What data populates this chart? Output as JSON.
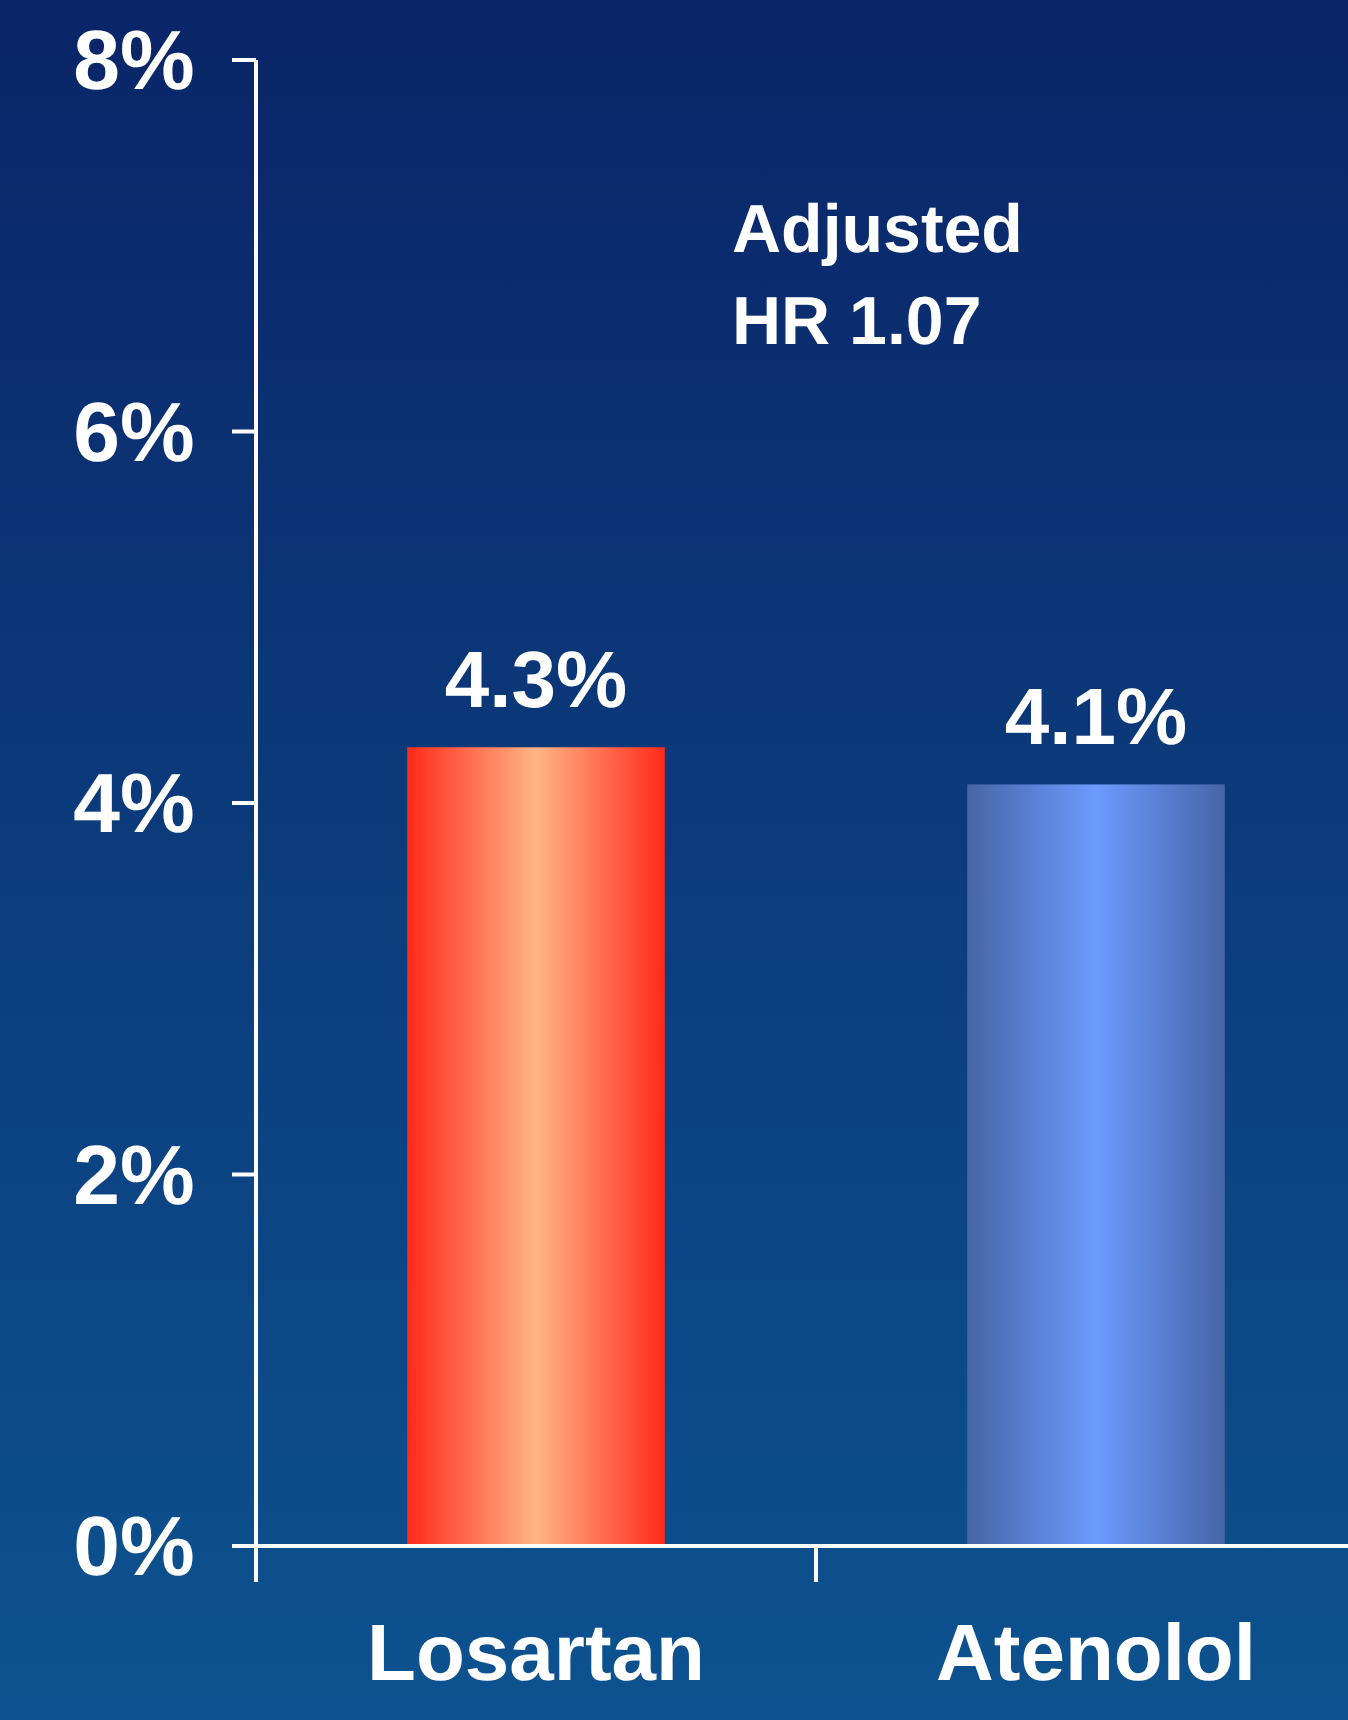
{
  "chart_data": {
    "type": "bar",
    "categories": [
      "Losartan",
      "Atenolol"
    ],
    "values": [
      4.3,
      4.1
    ],
    "colors": [
      "#ffb585",
      "#6b9bff"
    ],
    "value_labels": [
      "4.3%",
      "4.1%"
    ],
    "ylim": [
      0,
      8
    ],
    "yticks": [
      {
        "value": 0,
        "label": "0%"
      },
      {
        "value": 2,
        "label": "2%"
      },
      {
        "value": 4,
        "label": "4%"
      },
      {
        "value": 6,
        "label": "6%"
      },
      {
        "value": 8,
        "label": "8%"
      }
    ],
    "annotations": [
      "Adjusted\nHR 1.07"
    ],
    "grid": false
  }
}
